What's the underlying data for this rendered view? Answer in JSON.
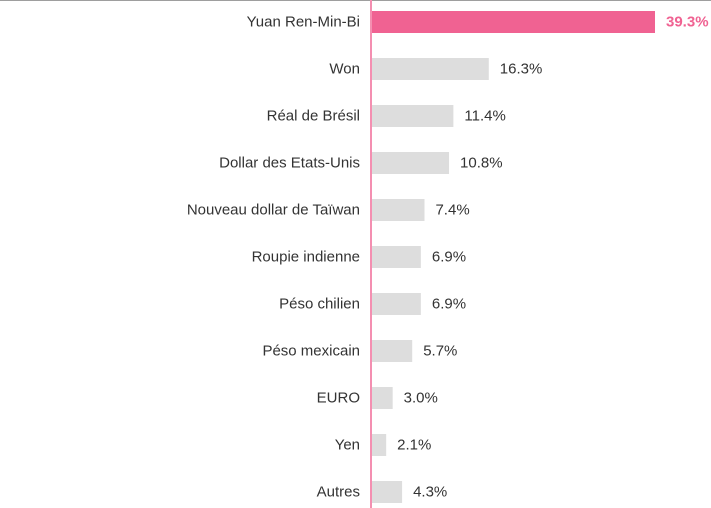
{
  "chart_data": {
    "type": "bar",
    "orientation": "horizontal",
    "categories": [
      "Yuan Ren-Min-Bi",
      "Won",
      "Réal de Brésil",
      "Dollar des Etats-Unis",
      "Nouveau dollar de Taïwan",
      "Roupie indienne",
      "Péso chilien",
      "Péso mexicain",
      "EURO",
      "Yen",
      "Autres"
    ],
    "values": [
      39.3,
      16.3,
      11.4,
      10.8,
      7.4,
      6.9,
      6.9,
      5.7,
      3.0,
      2.1,
      4.3
    ],
    "value_labels": [
      "39.3%",
      "16.3%",
      "11.4%",
      "10.8%",
      "7.4%",
      "6.9%",
      "6.9%",
      "5.7%",
      "3.0%",
      "2.1%",
      "4.3%"
    ],
    "highlight_index": 0,
    "xlim": [
      0,
      39.3
    ],
    "grid": false,
    "colors": {
      "highlight": "#f06292",
      "bar": "#dddddd",
      "axis": "#f48fb1",
      "text": "#333333"
    }
  }
}
